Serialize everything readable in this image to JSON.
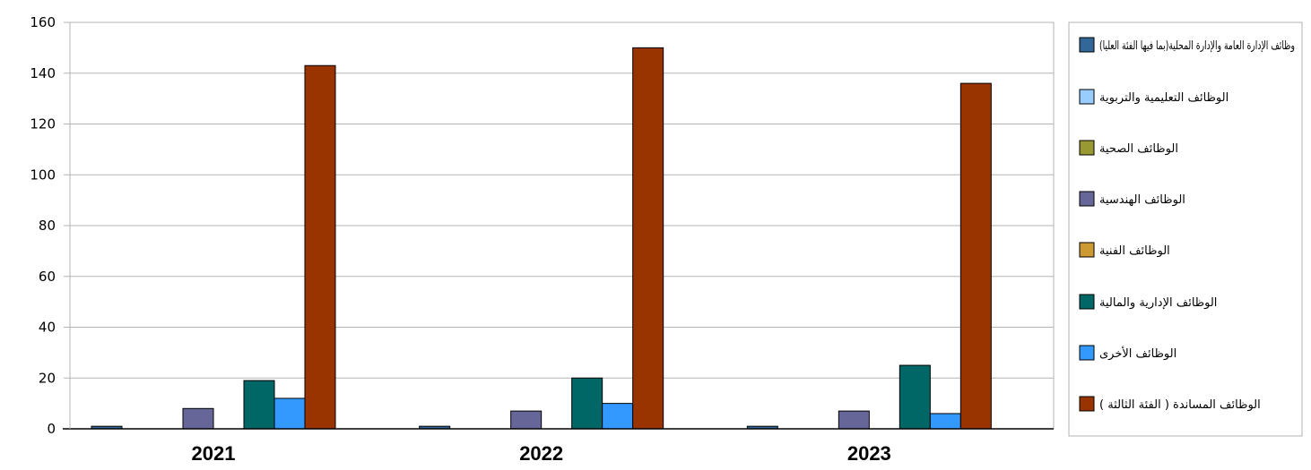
{
  "chart_data": {
    "type": "bar",
    "title": "",
    "xlabel": "",
    "ylabel": "",
    "categories": [
      "2021",
      "2022",
      "2023"
    ],
    "ylim": [
      0,
      160
    ],
    "yticks": [
      0,
      20,
      40,
      60,
      80,
      100,
      120,
      140,
      160
    ],
    "grid": true,
    "legend_position": "right",
    "series": [
      {
        "name": "وظائف الإدارة العامة والإدارة المحلية(بما فيها الفئة العليا)",
        "color": "#336699",
        "values": [
          1,
          1,
          1
        ]
      },
      {
        "name": "الوظائف التعليمية والتربوية",
        "color": "#99CCFF",
        "values": [
          0,
          0,
          0
        ]
      },
      {
        "name": "الوظائف الصحية",
        "color": "#999933",
        "values": [
          0,
          0,
          0
        ]
      },
      {
        "name": "الوظائف الهندسية",
        "color": "#666699",
        "values": [
          8,
          7,
          7
        ]
      },
      {
        "name": "الوظائف الفنية",
        "color": "#CC9933",
        "values": [
          0,
          0,
          0
        ]
      },
      {
        "name": "الوظائف الإدارية والمالية",
        "color": "#006666",
        "values": [
          19,
          20,
          25
        ]
      },
      {
        "name": "الوظائف الأخرى",
        "color": "#3399FF",
        "values": [
          12,
          10,
          6
        ]
      },
      {
        "name": "الوظائف المساندة ( الفئة الثالثة )",
        "color": "#993300",
        "values": [
          143,
          150,
          136
        ]
      }
    ]
  }
}
